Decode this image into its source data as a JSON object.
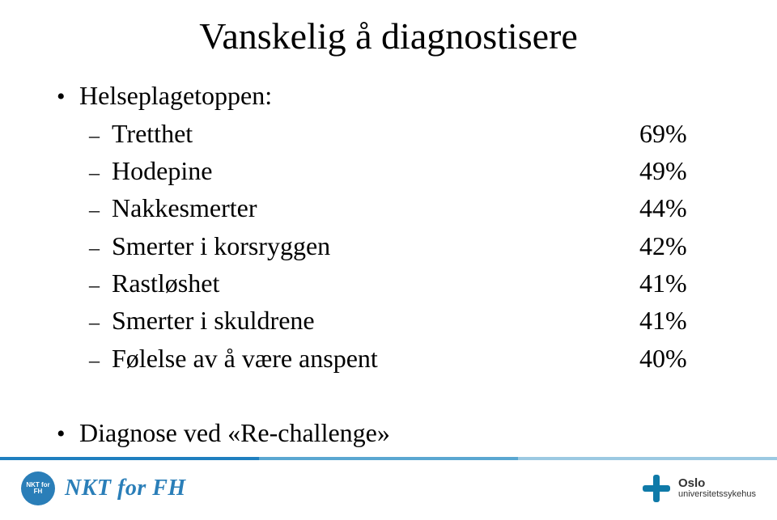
{
  "colors": {
    "text": "#000000",
    "background": "#ffffff",
    "stripe_a": "#1f7fbf",
    "stripe_b": "#5aa7d1",
    "stripe_c": "#9cc9e2",
    "nkt_circle": "#2a7eb8",
    "nkt_text": "#2a7eb8",
    "oslo_cross": "#0f7aa8",
    "oslo_text": "#333333"
  },
  "title": "Vanskelig å diagnostisere",
  "bullet1": "Helseplagetoppen:",
  "items": [
    {
      "label": "Tretthet",
      "value": "69%"
    },
    {
      "label": "Hodepine",
      "value": "49%"
    },
    {
      "label": "Nakkesmerter",
      "value": "44%"
    },
    {
      "label": "Smerter i korsryggen",
      "value": "42%"
    },
    {
      "label": "Rastløshet",
      "value": "41%"
    },
    {
      "label": "Smerter i skuldrene",
      "value": "41%"
    },
    {
      "label": "Følelse av å være anspent",
      "value": "40%"
    }
  ],
  "bullet2": "Diagnose ved «Re-challenge»",
  "footer": {
    "nkt_label": "NKT for FH",
    "nkt_circle_text": "NKT\nfor FH",
    "oslo_line1": "Oslo",
    "oslo_line2": "universitetssykehus"
  }
}
